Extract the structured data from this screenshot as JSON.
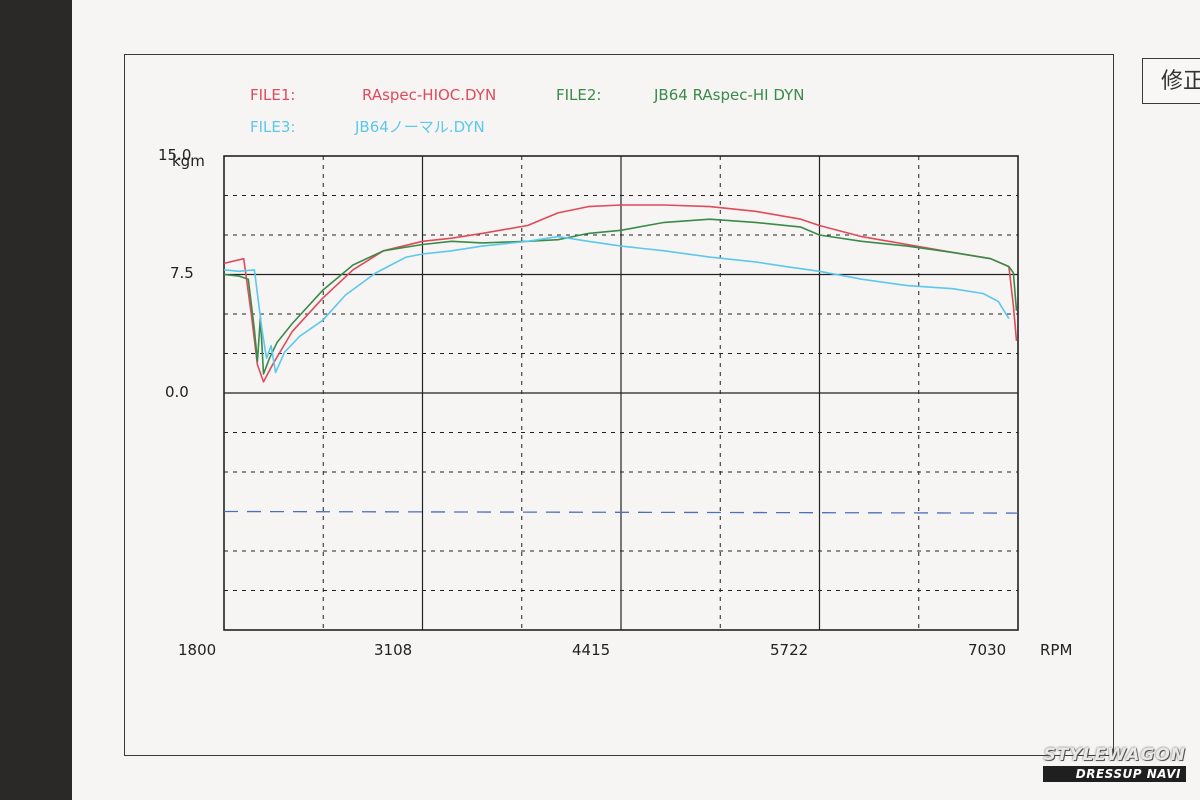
{
  "side_label": "修正",
  "watermark": {
    "top": "STYLEWAGON",
    "bottom": "DRESSUP NAVI"
  },
  "colors": {
    "series1": "#e04a5a",
    "series2": "#3a8a4a",
    "series3": "#5cc8ec",
    "reference": "#4b6fb8",
    "grid": "#222222"
  },
  "chart_data": {
    "type": "line",
    "ylabel": "kgm",
    "xlabel": "RPM",
    "x_ticks": [
      "1800",
      "3108",
      "4415",
      "5722",
      "7030"
    ],
    "y_ticks": [
      "15.0",
      "7.5",
      "0.0"
    ],
    "xlim": [
      1800,
      7030
    ],
    "ylim": [
      -15,
      15
    ],
    "grid": true,
    "legend": [
      {
        "file": "FILE1:",
        "name": "RAspec-HIOC.DYN"
      },
      {
        "file": "FILE2:",
        "name": "JB64 RAspec-HI DYN"
      },
      {
        "file": "FILE3:",
        "name": "JB64ノーマル.DYN"
      }
    ],
    "series": [
      {
        "name": "RAspec-HIOC.DYN",
        "color": "#e04a5a",
        "x": [
          1800,
          1930,
          1980,
          2020,
          2060,
          2120,
          2250,
          2450,
          2650,
          2850,
          3108,
          3300,
          3500,
          3800,
          4000,
          4200,
          4415,
          4700,
          5000,
          5300,
          5600,
          5722,
          6000,
          6300,
          6600,
          6850,
          6970,
          7000,
          7020
        ],
        "y": [
          8.2,
          8.5,
          5.0,
          1.8,
          0.7,
          1.8,
          3.9,
          6.0,
          7.8,
          9.0,
          9.6,
          9.8,
          10.1,
          10.6,
          11.4,
          11.8,
          11.9,
          11.9,
          11.8,
          11.5,
          11.0,
          10.6,
          9.9,
          9.4,
          8.9,
          8.5,
          8.0,
          5.5,
          3.3
        ]
      },
      {
        "name": "JB64 RAspec-HI DYN",
        "color": "#3a8a4a",
        "x": [
          1800,
          1900,
          1960,
          2000,
          2020,
          2040,
          2060,
          2100,
          2150,
          2250,
          2450,
          2650,
          2850,
          3108,
          3300,
          3500,
          3800,
          4000,
          4200,
          4415,
          4700,
          5000,
          5300,
          5600,
          5722,
          6000,
          6300,
          6600,
          6850,
          6970,
          7000,
          7020
        ],
        "y": [
          7.5,
          7.4,
          7.2,
          4.0,
          2.0,
          4.8,
          1.2,
          2.2,
          3.2,
          4.4,
          6.5,
          8.1,
          9.0,
          9.4,
          9.6,
          9.5,
          9.6,
          9.7,
          10.1,
          10.3,
          10.8,
          11.0,
          10.8,
          10.5,
          10.0,
          9.6,
          9.3,
          8.9,
          8.5,
          8.0,
          7.6,
          5.2
        ]
      },
      {
        "name": "JB64ノーマル.DYN",
        "color": "#5cc8ec",
        "x": [
          1800,
          1900,
          2000,
          2050,
          2080,
          2110,
          2140,
          2200,
          2300,
          2450,
          2600,
          2800,
          3000,
          3108,
          3300,
          3500,
          3800,
          4000,
          4200,
          4415,
          4700,
          5000,
          5300,
          5500,
          5722,
          6000,
          6300,
          6600,
          6800,
          6900,
          6970
        ],
        "y": [
          7.8,
          7.7,
          7.8,
          4.0,
          2.2,
          3.0,
          1.3,
          2.6,
          3.6,
          4.6,
          6.2,
          7.6,
          8.6,
          8.8,
          9.0,
          9.3,
          9.6,
          9.9,
          9.6,
          9.3,
          9.0,
          8.6,
          8.3,
          8.0,
          7.7,
          7.2,
          6.8,
          6.6,
          6.3,
          5.8,
          4.7
        ]
      },
      {
        "name": "",
        "color": "#4b6fb8",
        "dashed": true,
        "x": [
          1800,
          7030
        ],
        "y": [
          -7.5,
          -7.6
        ]
      }
    ]
  }
}
